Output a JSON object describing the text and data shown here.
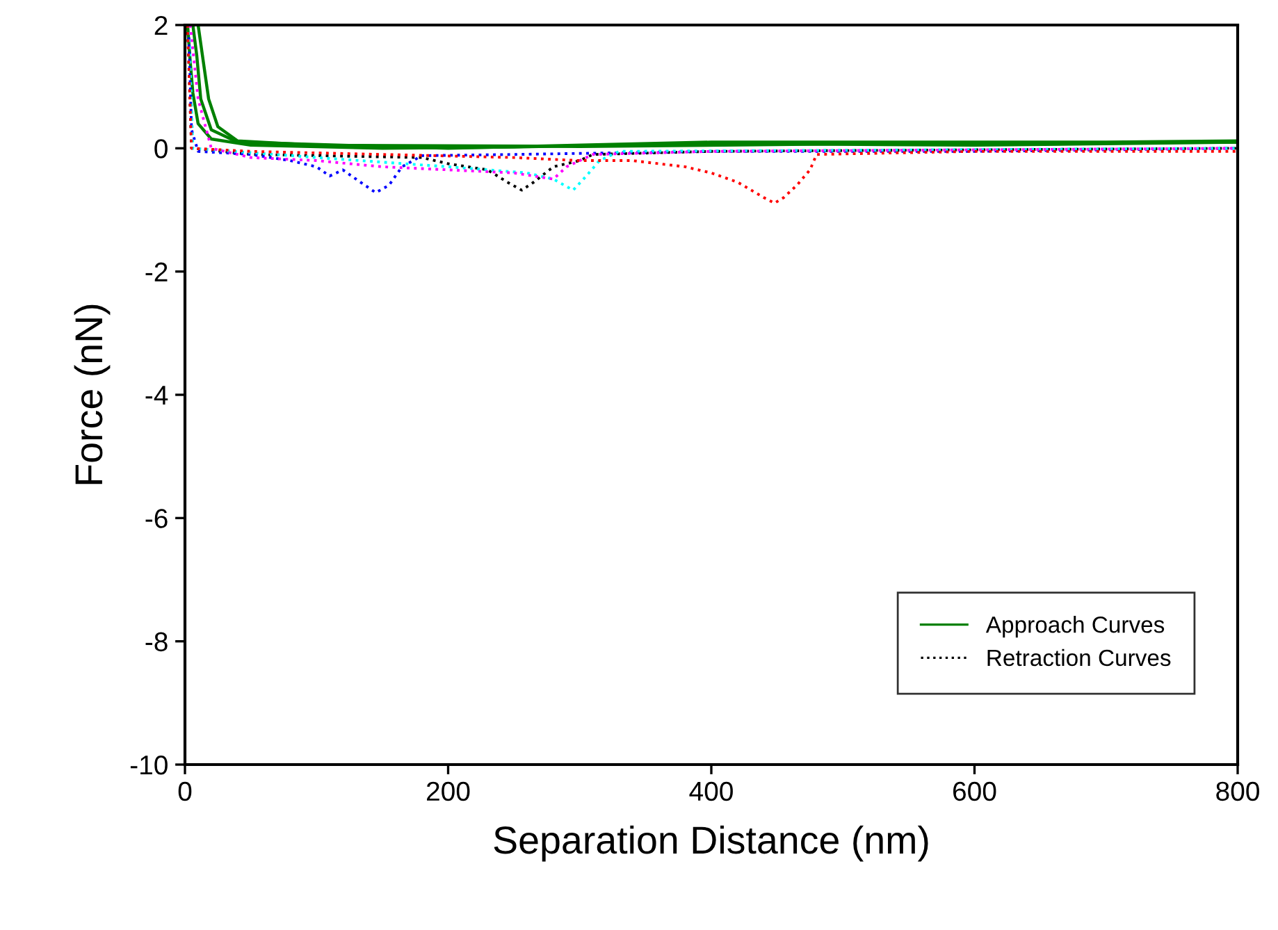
{
  "chart_data": {
    "type": "line",
    "xlabel": "Separation Distance (nm)",
    "ylabel": "Force (nN)",
    "xlim": [
      0,
      800
    ],
    "xticks": [
      0,
      200,
      400,
      600,
      800
    ],
    "ylim": [
      -10,
      2
    ],
    "yticks": [
      {
        "value": -10,
        "label": "-10"
      },
      {
        "value": -8,
        "label": "-8"
      },
      {
        "value": -6,
        "label": "-6"
      },
      {
        "value": -4,
        "label": "-4"
      },
      {
        "value": -2,
        "label": "-2"
      },
      0,
      2
    ],
    "grid": false,
    "legend": "bottom right",
    "marker": "none",
    "series": [
      {
        "name": "Approach Curves",
        "color": "#008000",
        "line_style": "solid",
        "x": [
          2,
          4,
          6,
          10,
          20,
          50,
          150,
          250,
          400,
          600,
          800
        ],
        "values": [
          2,
          1.4,
          0.9,
          0.4,
          0.15,
          0.05,
          0,
          0.02,
          0.08,
          0.05,
          0.1
        ]
      },
      {
        "color": "#008000",
        "line_style": "solid",
        "x": [
          6,
          9,
          12,
          20,
          40,
          200,
          400,
          700,
          800
        ],
        "values": [
          2,
          1.5,
          0.8,
          0.3,
          0.1,
          0,
          0.1,
          0.1,
          0.12
        ]
      },
      {
        "color": "#008000",
        "line_style": "solid",
        "x": [
          10,
          14,
          18,
          25,
          40,
          100,
          300,
          500,
          800
        ],
        "values": [
          2,
          1.4,
          0.8,
          0.35,
          0.12,
          0.05,
          0.03,
          0.07,
          0.1
        ]
      },
      {
        "name": "Retraction Curves",
        "color": "#000000",
        "line_style": "dotted",
        "x": [
          2,
          5,
          50,
          180,
          200,
          230,
          245,
          256,
          265,
          280,
          300,
          310,
          400,
          800
        ],
        "values": [
          2,
          0,
          -0.1,
          -0.15,
          -0.25,
          -0.35,
          -0.55,
          -0.68,
          -0.55,
          -0.3,
          -0.2,
          -0.1,
          -0.05,
          0
        ]
      },
      {
        "color": "#0000ff",
        "line_style": "dotted",
        "x": [
          3,
          5,
          10,
          50,
          80,
          100,
          110,
          120,
          130,
          145,
          155,
          165,
          180,
          250,
          400,
          600,
          800
        ],
        "values": [
          1.8,
          0.3,
          -0.05,
          -0.1,
          -0.2,
          -0.3,
          -0.45,
          -0.35,
          -0.5,
          -0.72,
          -0.6,
          -0.3,
          -0.12,
          -0.1,
          -0.05,
          -0.05,
          0
        ]
      },
      {
        "color": "#00ffff",
        "line_style": "dotted",
        "x": [
          3,
          6,
          100,
          200,
          260,
          280,
          295,
          305,
          315,
          330,
          800
        ],
        "values": [
          2,
          0,
          -0.15,
          -0.3,
          -0.4,
          -0.5,
          -0.68,
          -0.45,
          -0.2,
          -0.05,
          0
        ]
      },
      {
        "color": "#ff00ff",
        "line_style": "dotted",
        "x": [
          4,
          10,
          20,
          50,
          100,
          150,
          200,
          250,
          280,
          290,
          310,
          400,
          800
        ],
        "values": [
          2,
          0.8,
          0,
          -0.15,
          -0.2,
          -0.3,
          -0.35,
          -0.4,
          -0.5,
          -0.3,
          -0.1,
          -0.05,
          0
        ]
      },
      {
        "color": "#ff0000",
        "line_style": "dotted",
        "x": [
          2,
          5,
          50,
          150,
          250,
          300,
          340,
          380,
          400,
          420,
          440,
          448,
          455,
          465,
          475,
          480,
          600,
          800
        ],
        "values": [
          2,
          0,
          -0.05,
          -0.1,
          -0.15,
          -0.2,
          -0.2,
          -0.3,
          -0.4,
          -0.55,
          -0.8,
          -0.89,
          -0.8,
          -0.6,
          -0.35,
          -0.1,
          -0.05,
          -0.05
        ]
      }
    ]
  }
}
